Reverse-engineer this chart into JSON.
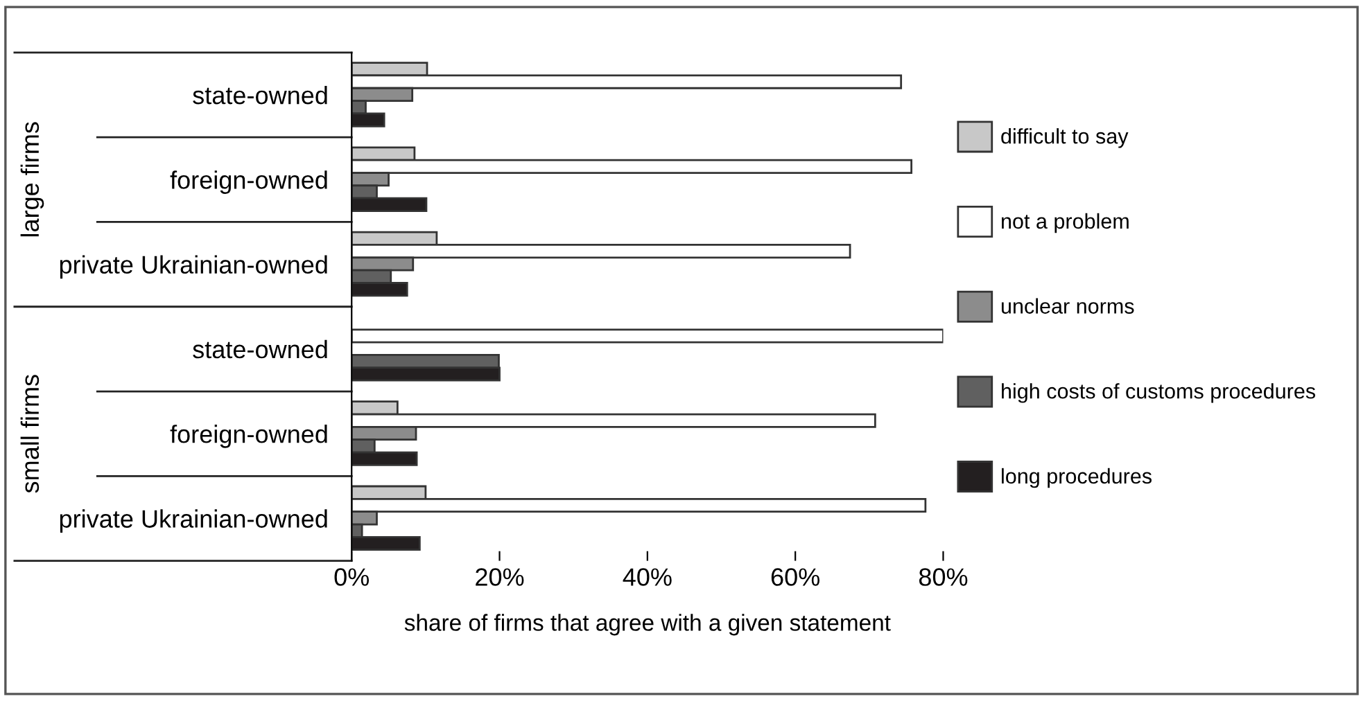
{
  "chart_data": {
    "type": "bar",
    "orientation": "horizontal",
    "xlabel": "share of firms that agree with a given statement",
    "categories": [
      "state-owned",
      "foreign-owned",
      "private Ukrainian-owned",
      "state-owned",
      "foreign-owned",
      "private Ukrainian-owned"
    ],
    "series": [
      {
        "name": "difficult to say",
        "color": "#c8c8c8",
        "values": [
          10.2,
          8.5,
          11.5,
          null,
          6.2,
          10.0
        ]
      },
      {
        "name": "not a problem",
        "color": "#ffffff",
        "values": [
          74.3,
          75.7,
          67.4,
          80.0,
          70.8,
          77.6
        ]
      },
      {
        "name": "unclear norms",
        "color": "#8c8c8c",
        "values": [
          8.2,
          5.0,
          8.3,
          null,
          8.7,
          3.4
        ]
      },
      {
        "name": "high costs of customs procedures",
        "color": "#606060",
        "values": [
          1.9,
          3.4,
          5.3,
          19.9,
          3.1,
          1.4
        ]
      },
      {
        "name": "long procedures",
        "color": "#231f20",
        "values": [
          4.4,
          10.1,
          7.5,
          20.0,
          8.8,
          9.2
        ]
      }
    ],
    "xlim": [
      0,
      80
    ],
    "xticks": [
      {
        "value": 0,
        "label": "0%"
      },
      {
        "value": 20,
        "label": "20%"
      },
      {
        "value": 40,
        "label": "40%"
      },
      {
        "value": 60,
        "label": "60%"
      },
      {
        "value": 80,
        "label": "80%"
      }
    ],
    "annotations": [
      "large firms",
      "small firms"
    ],
    "legend": "right",
    "grid": false
  }
}
